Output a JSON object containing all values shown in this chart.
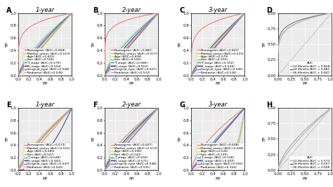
{
  "panels_top": [
    {
      "label": "A",
      "title": "1-year",
      "curves": [
        {
          "name": "Nomogram (AUC=0.858)",
          "color": "#E8746A",
          "auc": 0.858
        },
        {
          "name": "Marital_status (AUC=0.513)",
          "color": "#F5A623",
          "auc": 0.513
        },
        {
          "name": "Age (AUC=0.602)",
          "color": "#B8E986",
          "auc": 0.602
        },
        {
          "name": "Sex (AUC=0.506)",
          "color": "#7ED321",
          "auc": 0.506
        },
        {
          "name": "T_stage (AUC=0.579)",
          "color": "#4A90D9",
          "auc": 0.579
        },
        {
          "name": "N_stage (AUC=0.554)",
          "color": "#1A3A8A",
          "auc": 0.554
        },
        {
          "name": "Surgical_type (AUC=0.548)",
          "color": "#9B59B6",
          "auc": 0.548
        },
        {
          "name": "Radiation (AUC=0.536)",
          "color": "#D4A0C0",
          "auc": 0.536
        }
      ]
    },
    {
      "label": "B",
      "title": "2-year",
      "curves": [
        {
          "name": "Nomogram (AUC=0.881)",
          "color": "#E8746A",
          "auc": 0.881
        },
        {
          "name": "Marital_status (AUC=0.517)",
          "color": "#F5A623",
          "auc": 0.517
        },
        {
          "name": "Age (AUC=0.608)",
          "color": "#B8E986",
          "auc": 0.608
        },
        {
          "name": "Sex (AUC=0.505)",
          "color": "#7ED321",
          "auc": 0.505
        },
        {
          "name": "T_stage (AUC=0.586)",
          "color": "#4A90D9",
          "auc": 0.586
        },
        {
          "name": "N_stage (AUC=0.552)",
          "color": "#1A3A8A",
          "auc": 0.552
        },
        {
          "name": "Surgical_type (AUC=0.507)",
          "color": "#9B59B6",
          "auc": 0.507
        },
        {
          "name": "Radiation (AUC=0.532)",
          "color": "#D4A0C0",
          "auc": 0.532
        }
      ]
    },
    {
      "label": "C",
      "title": "3-year",
      "curves": [
        {
          "name": "Nomogram (AUC=0.847)",
          "color": "#E8746A",
          "auc": 0.847
        },
        {
          "name": "Marital_status (AUC=0.523)",
          "color": "#F5A623",
          "auc": 0.523
        },
        {
          "name": "Age (AUC=0.579)",
          "color": "#B8E986",
          "auc": 0.579
        },
        {
          "name": "Sex (AUC=0.505)",
          "color": "#7ED321",
          "auc": 0.505
        },
        {
          "name": "T_stage (AUC=0.502)",
          "color": "#4A90D9",
          "auc": 0.502
        },
        {
          "name": "N_stage (AUC=0.556)",
          "color": "#1A3A8A",
          "auc": 0.556
        },
        {
          "name": "Surgical_type (AUC=0.506)",
          "color": "#9B59B6",
          "auc": 0.506
        },
        {
          "name": "Radiation (AUC=0.536)",
          "color": "#D4A0C0",
          "auc": 0.536
        }
      ]
    },
    {
      "label": "D",
      "title": "",
      "curves": [
        {
          "name": "12-Months AUC = 0.858",
          "color": "#AAAAAA",
          "auc": 0.858
        },
        {
          "name": "24-Months AUC = 0.881",
          "color": "#666666",
          "auc": 0.881
        },
        {
          "name": "36-Months AUC = 0.847",
          "color": "#CCCCCC",
          "auc": 0.847
        }
      ],
      "legend_title": "AUC"
    }
  ],
  "panels_bottom": [
    {
      "label": "E",
      "title": "1-year",
      "curves": [
        {
          "name": "Nomogram (AUC=0.573)",
          "color": "#E8746A",
          "auc": 0.573
        },
        {
          "name": "Marital_status (AUC=0.510)",
          "color": "#F5A623",
          "auc": 0.51
        },
        {
          "name": "Age (AUC=0.580)",
          "color": "#B8E986",
          "auc": 0.58
        },
        {
          "name": "Sex (AUC=0.547)",
          "color": "#7ED321",
          "auc": 0.547
        },
        {
          "name": "T_stage (AUC=0.548)",
          "color": "#4A90D9",
          "auc": 0.548
        },
        {
          "name": "N_stage (AUC=0.342)",
          "color": "#1A3A8A",
          "auc": 0.342
        },
        {
          "name": "Surgical_type (AUC=0.547)",
          "color": "#9B59B6",
          "auc": 0.547
        },
        {
          "name": "Radiation (AUC=0.542)",
          "color": "#D4A0C0",
          "auc": 0.542
        }
      ]
    },
    {
      "label": "F",
      "title": "2-year",
      "curves": [
        {
          "name": "Nomogram (AUC=0.607)",
          "color": "#E8746A",
          "auc": 0.607
        },
        {
          "name": "Marital_status (AUC=0.513)",
          "color": "#F5A623",
          "auc": 0.513
        },
        {
          "name": "Age (AUC=0.596)",
          "color": "#B8E986",
          "auc": 0.596
        },
        {
          "name": "Sex (AUC=0.542)",
          "color": "#7ED321",
          "auc": 0.542
        },
        {
          "name": "T_stage (AUC=0.504)",
          "color": "#4A90D9",
          "auc": 0.504
        },
        {
          "name": "N_stage (AUC=0.571)",
          "color": "#1A3A8A",
          "auc": 0.571
        },
        {
          "name": "Surgical_type (AUC=0.548)",
          "color": "#9B59B6",
          "auc": 0.548
        },
        {
          "name": "Radiation (AUC=0.541)",
          "color": "#D4A0C0",
          "auc": 0.541
        }
      ]
    },
    {
      "label": "G",
      "title": "3-year",
      "curves": [
        {
          "name": "Nomogram (AUC=0.608)",
          "color": "#E8746A",
          "auc": 0.608
        },
        {
          "name": "Marital_status (AUC=0.508)",
          "color": "#F5A623",
          "auc": 0.508
        },
        {
          "name": "Age (AUC=0.526)",
          "color": "#B8E986",
          "auc": 0.526
        },
        {
          "name": "Sex (AUC=0.129)",
          "color": "#7ED321",
          "auc": 0.129
        },
        {
          "name": "T_stage (AUC=0.528)",
          "color": "#4A90D9",
          "auc": 0.528
        },
        {
          "name": "N_stage (AUC=0.502)",
          "color": "#1A3A8A",
          "auc": 0.502
        },
        {
          "name": "Surgical_type (AUC=0.505)",
          "color": "#9B59B6",
          "auc": 0.505
        },
        {
          "name": "Radiation (AUC=0.154)",
          "color": "#D4A0C0",
          "auc": 0.154
        }
      ]
    },
    {
      "label": "H",
      "title": "",
      "curves": [
        {
          "name": "12-Months AUC = 0.573",
          "color": "#AAAAAA",
          "auc": 0.573
        },
        {
          "name": "24-Months AUC = 0.607",
          "color": "#666666",
          "auc": 0.607
        },
        {
          "name": "36-Months AUC = 0.608",
          "color": "#CCCCCC",
          "auc": 0.608
        }
      ],
      "legend_title": "AUC"
    }
  ],
  "bg_color": "#FFFFFF",
  "panel_bg": "#EBEBEB",
  "grid_color": "#FFFFFF",
  "axis_label_fontsize": 4.5,
  "tick_fontsize": 4.0,
  "legend_fontsize": 3.2,
  "title_fontsize": 6,
  "label_fontsize": 7
}
